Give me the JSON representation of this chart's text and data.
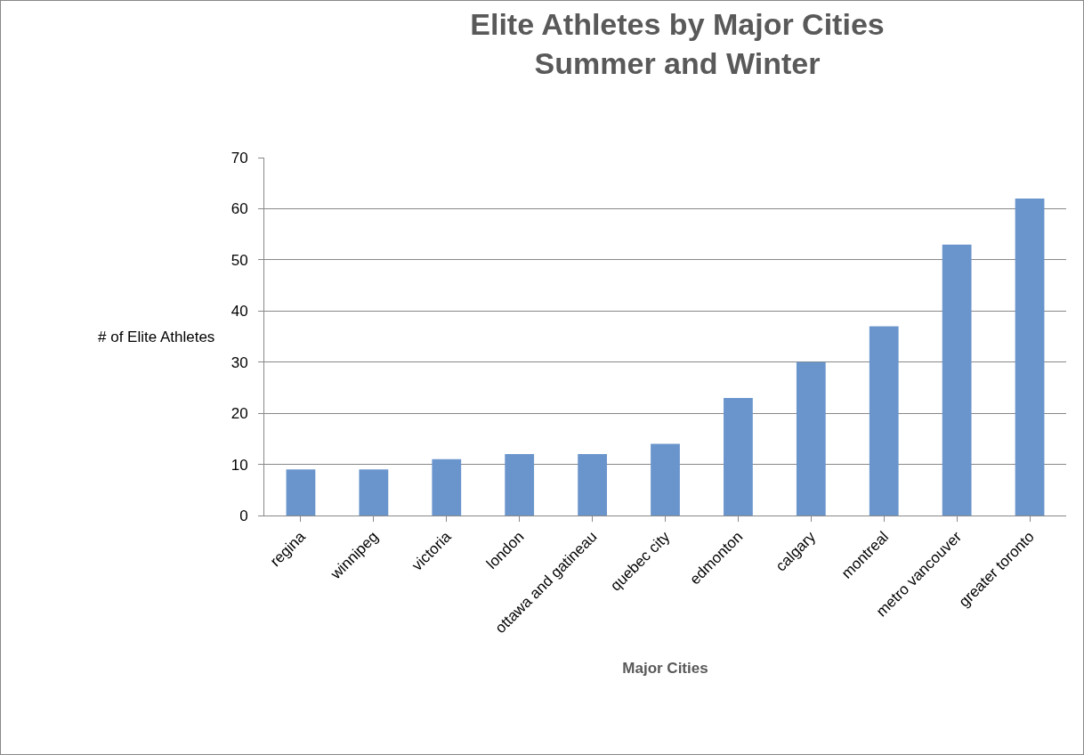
{
  "chart_data": {
    "type": "bar",
    "title": "Elite Athletes by Major Cities\nSummer and Winter",
    "xlabel": "Major Cities",
    "ylabel": "# of Elite Athletes",
    "categories": [
      "regina",
      "winnipeg",
      "victoria",
      "london",
      "ottawa and gatineau",
      "quebec city",
      "edmonton",
      "calgary",
      "montreal",
      "metro vancouver",
      "greater toronto"
    ],
    "values": [
      9,
      9,
      11,
      12,
      12,
      14,
      23,
      30,
      37,
      53,
      62
    ],
    "color": "#6a95cc",
    "ylim": [
      0,
      70
    ],
    "yticks": [
      0,
      10,
      20,
      30,
      40,
      50,
      60,
      70
    ],
    "grid": "y",
    "legend": false
  }
}
